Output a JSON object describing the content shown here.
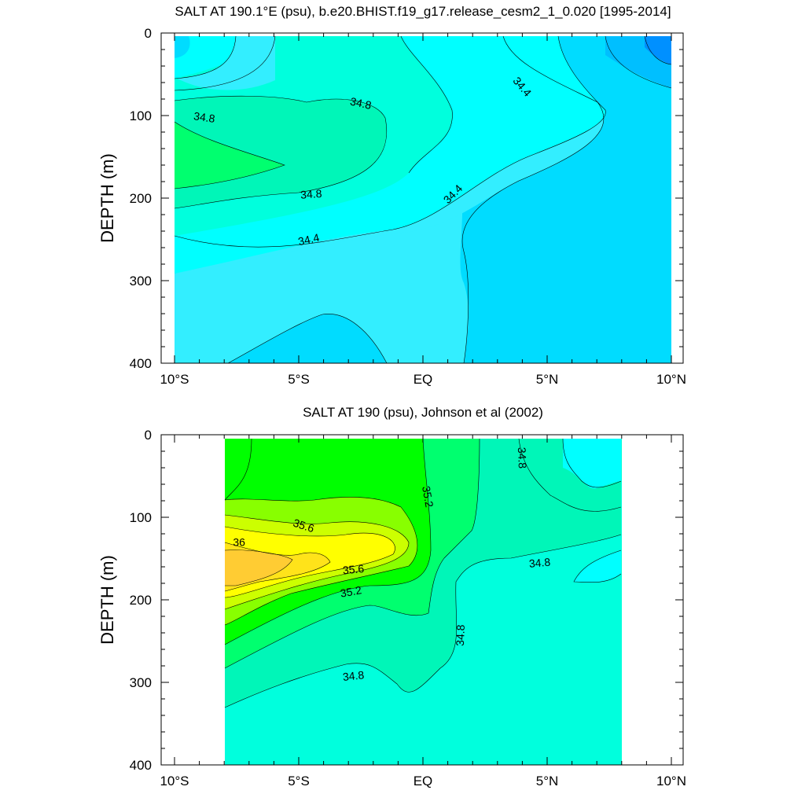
{
  "chart_data": [
    {
      "type": "heatmap",
      "title": "SALT AT 190.1°E (psu), b.e20.BHIST.f19_g17.release_cesm2_1_0.020 [1995-2014]",
      "ylabel": "DEPTH (m)",
      "xlabel": "",
      "xlim": [
        -10,
        10
      ],
      "ylim": [
        400,
        0
      ],
      "x_ticks": [
        {
          "value": -10,
          "label": "10°S"
        },
        {
          "value": -5,
          "label": "5°S"
        },
        {
          "value": 0,
          "label": "EQ"
        },
        {
          "value": 5,
          "label": "5°N"
        },
        {
          "value": 10,
          "label": "10°N"
        }
      ],
      "y_ticks": [
        {
          "value": 0,
          "label": "0"
        },
        {
          "value": 100,
          "label": "100"
        },
        {
          "value": 200,
          "label": "200"
        },
        {
          "value": 300,
          "label": "300"
        },
        {
          "value": 400,
          "label": "400"
        }
      ],
      "contour_labels": [
        {
          "text": "34.8",
          "x": -8.8,
          "depth": 102,
          "rotate": 8
        },
        {
          "text": "34.8",
          "x": -2.5,
          "depth": 85,
          "rotate": 12
        },
        {
          "text": "34.8",
          "x": -4.5,
          "depth": 195,
          "rotate": -4
        },
        {
          "text": "34.4",
          "x": -4.6,
          "depth": 250,
          "rotate": -12
        },
        {
          "text": "34.4",
          "x": 4.0,
          "depth": 65,
          "rotate": 50
        },
        {
          "text": "34.4",
          "x": 1.2,
          "depth": 195,
          "rotate": -45
        }
      ]
    },
    {
      "type": "heatmap",
      "title": "SALT AT 190 (psu), Johnson et al (2002)",
      "ylabel": "DEPTH (m)",
      "xlabel": "",
      "xlim": [
        -10,
        10
      ],
      "ylim": [
        400,
        0
      ],
      "data_extent_x": [
        -8,
        8
      ],
      "x_ticks": [
        {
          "value": -10,
          "label": "10°S"
        },
        {
          "value": -5,
          "label": "5°S"
        },
        {
          "value": 0,
          "label": "EQ"
        },
        {
          "value": 5,
          "label": "5°N"
        },
        {
          "value": 10,
          "label": "10°N"
        }
      ],
      "y_ticks": [
        {
          "value": 0,
          "label": "0"
        },
        {
          "value": 100,
          "label": "100"
        },
        {
          "value": 200,
          "label": "200"
        },
        {
          "value": 300,
          "label": "300"
        },
        {
          "value": 400,
          "label": "400"
        }
      ],
      "contour_labels": [
        {
          "text": "34.8",
          "x": 4.0,
          "depth": 28,
          "rotate": 88
        },
        {
          "text": "35.2",
          "x": 0.2,
          "depth": 75,
          "rotate": 80
        },
        {
          "text": "35.6",
          "x": -4.8,
          "depth": 110,
          "rotate": 18
        },
        {
          "text": "36",
          "x": -7.4,
          "depth": 130,
          "rotate": 0
        },
        {
          "text": "35.6",
          "x": -2.8,
          "depth": 163,
          "rotate": -5
        },
        {
          "text": "35.2",
          "x": -2.9,
          "depth": 190,
          "rotate": -10
        },
        {
          "text": "34.8",
          "x": 4.7,
          "depth": 155,
          "rotate": -5
        },
        {
          "text": "34.8",
          "x": 1.5,
          "depth": 243,
          "rotate": -88
        },
        {
          "text": "34.8",
          "x": -2.8,
          "depth": 292,
          "rotate": -6
        }
      ]
    }
  ],
  "colors": {
    "sal_33_6": "#0090ff",
    "sal_33_8": "#00bfff",
    "sal_34_0": "#00dcff",
    "sal_34_2": "#33eeff",
    "sal_34_4": "#00ffff",
    "sal_34_6": "#00ffdd",
    "sal_34_8": "#00f6b8",
    "sal_35_0": "#00ff6f",
    "sal_35_2": "#00ff00",
    "sal_35_4": "#88ff00",
    "sal_35_6": "#ccff00",
    "sal_35_8": "#ffff00",
    "sal_36_0": "#ffe31a",
    "sal_36_2": "#ffcc33"
  }
}
